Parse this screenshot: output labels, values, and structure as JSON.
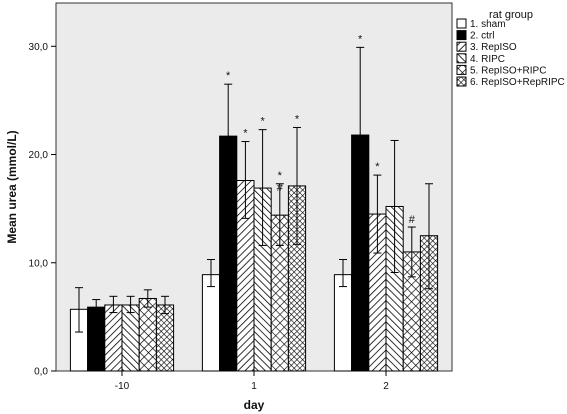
{
  "chart_data": {
    "type": "bar",
    "xlabel": "day",
    "ylabel": "Mean urea (mmol/L)",
    "ylim": [
      0,
      34
    ],
    "yticks": [
      0,
      10,
      20,
      30
    ],
    "ytick_labels": [
      "0,0",
      "10,0",
      "20,0",
      "30,0"
    ],
    "categories": [
      "-10",
      "1",
      "2"
    ],
    "legend_title": "rat group",
    "legend_position": "right",
    "grid": false,
    "background": "#ebebeb",
    "series": [
      {
        "name": "1. sham",
        "pattern": "white",
        "values": [
          5.7,
          8.9,
          8.9
        ],
        "err_upper": [
          7.7,
          10.3,
          10.3
        ],
        "err_lower": [
          3.6,
          7.8,
          7.8
        ],
        "marks": [
          "",
          "",
          ""
        ]
      },
      {
        "name": "2. ctrl",
        "pattern": "black",
        "values": [
          5.9,
          21.7,
          21.8
        ],
        "err_upper": [
          6.6,
          26.5,
          29.9
        ],
        "err_lower": [
          5.2,
          16.8,
          13.7
        ],
        "marks": [
          "",
          "*",
          "*"
        ]
      },
      {
        "name": "3. RepISO",
        "pattern": "diag-forward",
        "values": [
          6.1,
          17.6,
          14.5
        ],
        "err_upper": [
          6.9,
          21.2,
          18.1
        ],
        "err_lower": [
          5.4,
          14.1,
          10.9
        ],
        "marks": [
          "",
          "*",
          "*"
        ]
      },
      {
        "name": "4. RIPC",
        "pattern": "diag-back",
        "values": [
          6.1,
          16.9,
          15.2
        ],
        "err_upper": [
          6.9,
          22.3,
          21.3
        ],
        "err_lower": [
          5.4,
          11.6,
          9.1
        ],
        "marks": [
          "",
          "*",
          ""
        ]
      },
      {
        "name": "5. RepISO+RIPC",
        "pattern": "crosshatch",
        "values": [
          6.7,
          14.4,
          11.0
        ],
        "err_upper": [
          7.5,
          17.3,
          13.3
        ],
        "err_lower": [
          5.9,
          11.6,
          8.7
        ],
        "marks": [
          "",
          "*#",
          "#"
        ]
      },
      {
        "name": "6. RepISO+RepRIPC",
        "pattern": "dense-cross",
        "values": [
          6.1,
          17.1,
          12.5
        ],
        "err_upper": [
          6.9,
          22.5,
          17.3
        ],
        "err_lower": [
          5.3,
          11.7,
          7.6
        ],
        "marks": [
          "",
          "*",
          ""
        ]
      }
    ]
  }
}
